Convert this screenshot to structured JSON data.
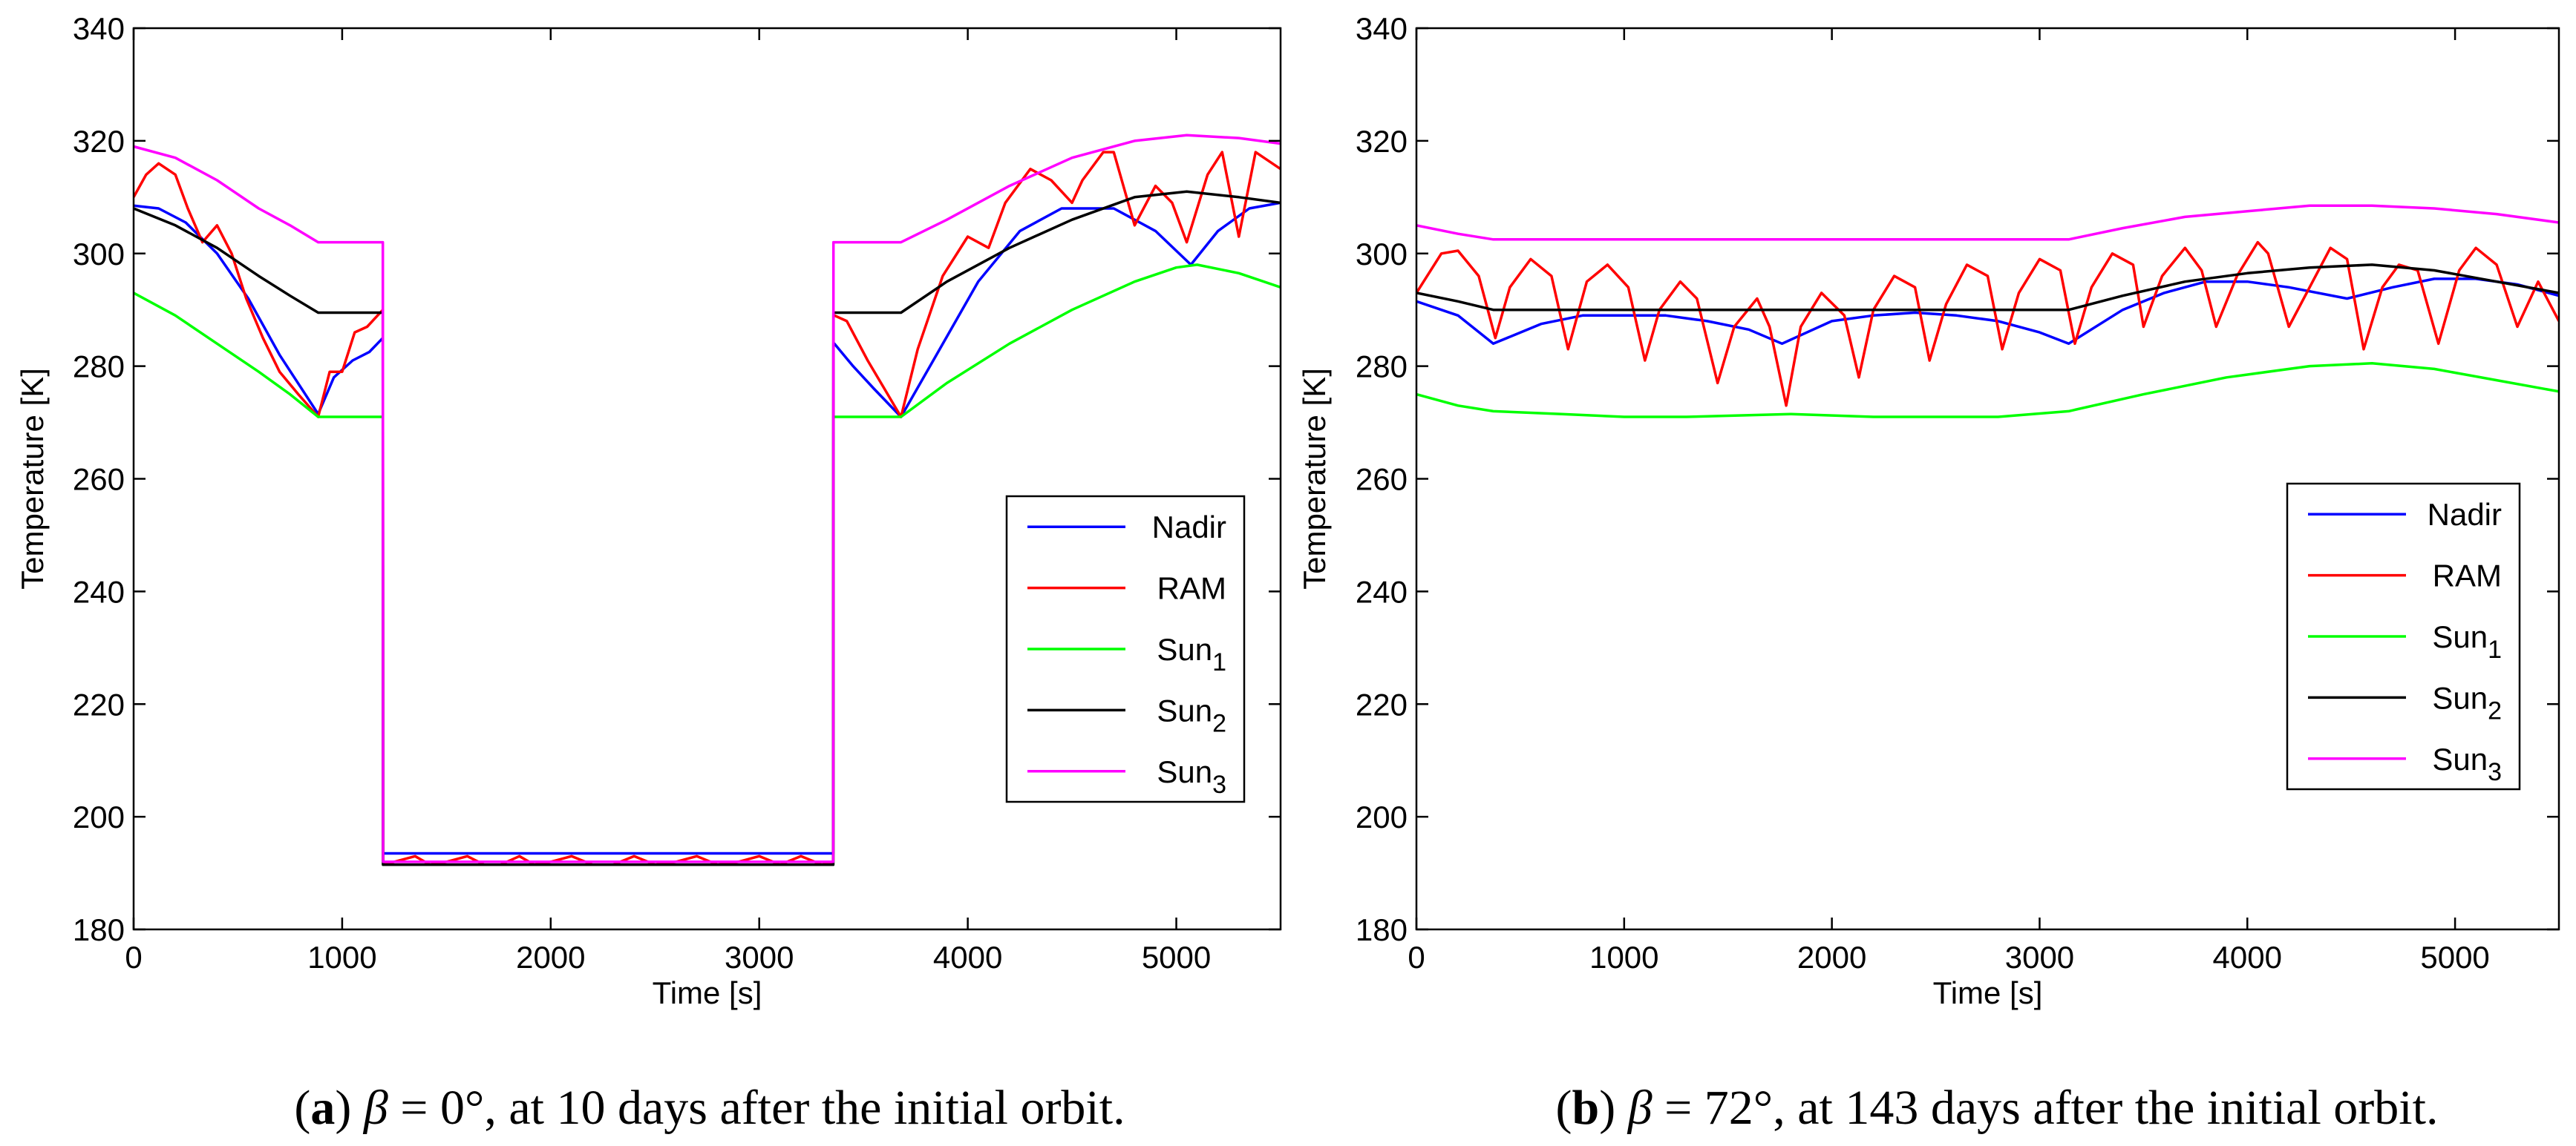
{
  "chart_data": [
    {
      "type": "line",
      "panel": "a",
      "title": "",
      "xlabel": "Time [s]",
      "ylabel": "Temperature [K]",
      "xlim": [
        0,
        5500
      ],
      "ylim": [
        180,
        340
      ],
      "xticks": [
        0,
        1000,
        2000,
        3000,
        4000,
        5000
      ],
      "yticks": [
        180,
        200,
        220,
        240,
        260,
        280,
        300,
        320,
        340
      ],
      "xtick_labels": [
        "0",
        "1000",
        "2000",
        "3000",
        "4000",
        "5000"
      ],
      "ytick_labels": [
        "180",
        "200",
        "220",
        "240",
        "260",
        "280",
        "300",
        "320",
        "340"
      ],
      "legend_position": "center-right",
      "caption": {
        "tag": "a",
        "symbol": "β",
        "value": "= 0°",
        "rest": ", at 10 days after the initial orbit."
      },
      "series": [
        {
          "name": "Nadir",
          "sub": "",
          "color": "#0000ff",
          "x": [
            0,
            120,
            250,
            400,
            550,
            700,
            885,
            960,
            1050,
            1130,
            1195,
            1196,
            1200,
            3355,
            3356,
            3360,
            3450,
            3550,
            3680,
            3850,
            4050,
            4250,
            4450,
            4700,
            4900,
            5070,
            5200,
            5350,
            5500
          ],
          "y": [
            308.5,
            308,
            305.5,
            300,
            292,
            282,
            271.5,
            278,
            281,
            282.5,
            285,
            193.5,
            193.5,
            193.5,
            284,
            284,
            280,
            276,
            271,
            282,
            295,
            304,
            308,
            308,
            304,
            298,
            304,
            308,
            309
          ]
        },
        {
          "name": "RAM",
          "sub": "",
          "color": "#ff0000",
          "x": [
            0,
            60,
            120,
            200,
            260,
            330,
            400,
            470,
            540,
            620,
            700,
            790,
            885,
            940,
            1000,
            1060,
            1120,
            1195,
            1196,
            1200,
            1350,
            1420,
            1500,
            1600,
            1680,
            1760,
            1850,
            1920,
            2000,
            2100,
            2200,
            2300,
            2400,
            2500,
            2600,
            2700,
            2800,
            2900,
            3000,
            3100,
            3200,
            3300,
            3355,
            3356,
            3360,
            3420,
            3520,
            3600,
            3680,
            3760,
            3880,
            4000,
            4100,
            4180,
            4300,
            4400,
            4500,
            4550,
            4650,
            4700,
            4800,
            4900,
            4980,
            5050,
            5150,
            5220,
            5300,
            5380,
            5500
          ],
          "y": [
            310,
            314,
            316,
            314,
            308,
            302,
            305,
            300,
            292,
            285,
            279,
            275,
            271,
            279,
            279,
            286,
            287,
            290,
            192,
            191.5,
            193,
            191.5,
            192,
            193,
            191.5,
            191.5,
            193,
            191.5,
            192,
            193,
            191.5,
            191.5,
            193,
            191.5,
            192,
            193,
            191.5,
            192,
            193,
            191.5,
            193,
            191.5,
            192,
            289,
            289,
            288,
            281,
            276,
            271,
            283,
            296,
            303,
            301,
            309,
            315,
            313,
            309,
            313,
            318,
            318,
            305,
            312,
            309,
            302,
            314,
            318,
            303,
            318,
            315
          ]
        },
        {
          "name": "Sun",
          "sub": "1",
          "color": "#00ff00",
          "x": [
            0,
            200,
            400,
            600,
            750,
            885,
            1195,
            1196,
            1200,
            3355,
            3356,
            3360,
            3680,
            3900,
            4200,
            4500,
            4800,
            5000,
            5100,
            5300,
            5500
          ],
          "y": [
            293,
            289,
            284,
            279,
            275,
            271,
            271,
            191.5,
            191.5,
            191.5,
            271,
            271,
            271,
            277,
            284,
            290,
            295,
            297.5,
            298,
            296.5,
            294
          ]
        },
        {
          "name": "Sun",
          "sub": "2",
          "color": "#000000",
          "x": [
            0,
            200,
            400,
            600,
            750,
            885,
            1195,
            1196,
            1200,
            2500,
            3355,
            3356,
            3360,
            3680,
            3900,
            4200,
            4500,
            4800,
            5050,
            5300,
            5500
          ],
          "y": [
            308,
            305,
            301,
            296,
            292.5,
            289.5,
            289.5,
            191.5,
            191.5,
            191.5,
            191.5,
            289.5,
            289.5,
            289.5,
            295,
            301,
            306,
            310,
            311,
            310,
            309
          ]
        },
        {
          "name": "Sun",
          "sub": "3",
          "color": "#ff00ff",
          "x": [
            0,
            200,
            400,
            600,
            750,
            885,
            1195,
            1196,
            1200,
            3355,
            3356,
            3360,
            3680,
            3900,
            4200,
            4500,
            4800,
            5050,
            5300,
            5500
          ],
          "y": [
            319,
            317,
            313,
            308,
            305,
            302,
            302,
            192,
            192,
            192,
            302,
            302,
            302,
            306,
            312,
            317,
            320,
            321,
            320.5,
            319.5
          ]
        }
      ]
    },
    {
      "type": "line",
      "panel": "b",
      "title": "",
      "xlabel": "Time [s]",
      "ylabel": "Temperature [K]",
      "xlim": [
        0,
        5500
      ],
      "ylim": [
        180,
        340
      ],
      "xticks": [
        0,
        1000,
        2000,
        3000,
        4000,
        5000
      ],
      "yticks": [
        180,
        200,
        220,
        240,
        260,
        280,
        300,
        320,
        340
      ],
      "xtick_labels": [
        "0",
        "1000",
        "2000",
        "3000",
        "4000",
        "5000"
      ],
      "ytick_labels": [
        "180",
        "200",
        "220",
        "240",
        "260",
        "280",
        "300",
        "320",
        "340"
      ],
      "legend_position": "center-right",
      "caption": {
        "tag": "b",
        "symbol": "β",
        "value": "= 72°",
        "rest": ", at 143 days after the initial orbit."
      },
      "series": [
        {
          "name": "Nadir",
          "sub": "",
          "color": "#0000ff",
          "x": [
            0,
            200,
            370,
            600,
            800,
            1000,
            1200,
            1400,
            1600,
            1760,
            2000,
            2200,
            2400,
            2600,
            2800,
            3000,
            3140,
            3400,
            3600,
            3800,
            4000,
            4200,
            4480,
            4700,
            4900,
            5100,
            5300,
            5500
          ],
          "y": [
            291.5,
            289,
            284,
            287.5,
            289,
            289,
            289,
            288,
            286.5,
            284,
            288,
            289,
            289.5,
            289,
            288,
            286,
            284,
            290,
            293,
            295,
            295,
            294,
            292,
            294,
            295.5,
            295.5,
            294.5,
            292.5
          ]
        },
        {
          "name": "RAM",
          "sub": "",
          "color": "#ff0000",
          "x": [
            0,
            120,
            200,
            300,
            380,
            450,
            550,
            650,
            730,
            820,
            920,
            1020,
            1100,
            1170,
            1270,
            1350,
            1450,
            1530,
            1640,
            1700,
            1780,
            1850,
            1950,
            2060,
            2130,
            2200,
            2300,
            2400,
            2470,
            2550,
            2650,
            2750,
            2820,
            2900,
            3000,
            3100,
            3170,
            3250,
            3350,
            3450,
            3500,
            3590,
            3700,
            3780,
            3850,
            3950,
            4050,
            4100,
            4200,
            4300,
            4400,
            4480,
            4560,
            4650,
            4730,
            4820,
            4920,
            5020,
            5100,
            5200,
            5300,
            5400,
            5500
          ],
          "y": [
            293,
            300,
            300.5,
            296,
            285,
            294,
            299,
            296,
            283,
            295,
            298,
            294,
            281,
            290,
            295,
            292,
            277,
            287,
            292,
            287,
            273,
            287,
            293,
            289,
            278,
            290,
            296,
            294,
            281,
            291,
            298,
            296,
            283,
            293,
            299,
            297,
            284,
            294,
            300,
            298,
            287,
            296,
            301,
            297,
            287,
            296,
            302,
            300,
            287,
            294,
            301,
            299,
            283,
            294,
            298,
            297,
            284,
            297,
            301,
            298,
            287,
            295,
            288
          ]
        },
        {
          "name": "Sun",
          "sub": "1",
          "color": "#00ff00",
          "x": [
            0,
            200,
            370,
            700,
            1000,
            1300,
            1800,
            2200,
            2500,
            2800,
            3140,
            3500,
            3900,
            4300,
            4600,
            4900,
            5200,
            5500
          ],
          "y": [
            275,
            273,
            272,
            271.5,
            271,
            271,
            271.5,
            271,
            271,
            271,
            272,
            275,
            278,
            280,
            280.5,
            279.5,
            277.5,
            275.5
          ]
        },
        {
          "name": "Sun",
          "sub": "2",
          "color": "#000000",
          "x": [
            0,
            200,
            370,
            800,
            1200,
            1700,
            2200,
            2700,
            3140,
            3400,
            3700,
            4000,
            4300,
            4600,
            4900,
            5200,
            5500
          ],
          "y": [
            293,
            291.5,
            290,
            290,
            290,
            290,
            290,
            290,
            290,
            292.5,
            295,
            296.5,
            297.5,
            298,
            297,
            295,
            293
          ]
        },
        {
          "name": "Sun",
          "sub": "3",
          "color": "#ff00ff",
          "x": [
            0,
            200,
            370,
            800,
            1200,
            1700,
            2200,
            2700,
            3140,
            3400,
            3700,
            4000,
            4300,
            4600,
            4900,
            5200,
            5500
          ],
          "y": [
            305,
            303.5,
            302.5,
            302.5,
            302.5,
            302.5,
            302.5,
            302.5,
            302.5,
            304.5,
            306.5,
            307.5,
            308.5,
            308.5,
            308,
            307,
            305.5
          ]
        }
      ]
    }
  ]
}
